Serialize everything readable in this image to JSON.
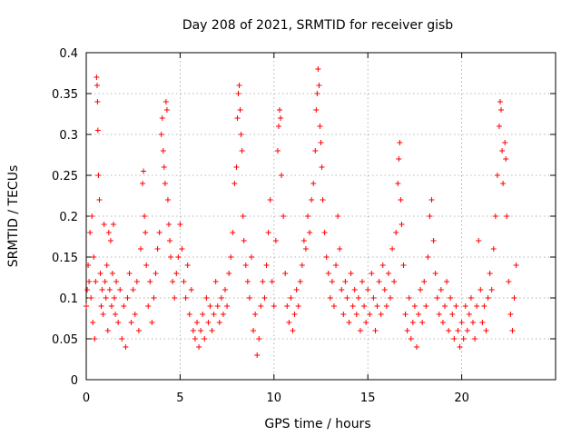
{
  "chart_data": {
    "type": "scatter",
    "title": "Day 208 of 2021, SRMTID for receiver gisb",
    "xlabel": "GPS time / hours",
    "ylabel": "SRMTID / TECUs",
    "xlim": [
      0,
      25
    ],
    "ylim": [
      0,
      0.4
    ],
    "xticks": [
      0,
      5,
      10,
      15,
      20
    ],
    "xtick_labels": [
      "0",
      "5",
      "10",
      "15",
      "20"
    ],
    "yticks": [
      0,
      0.05,
      0.1,
      0.15,
      0.2,
      0.25,
      0.3,
      0.35,
      0.4
    ],
    "ytick_labels": [
      "0",
      "0.05",
      "0.1",
      "0.15",
      "0.2",
      "0.25",
      "0.3",
      "0.35",
      "0.4"
    ],
    "grid": true,
    "marker": "plus",
    "color": "#ff0000",
    "series": [
      {
        "name": "SRMTID",
        "points": [
          [
            0.0,
            0.09
          ],
          [
            0.05,
            0.11
          ],
          [
            0.1,
            0.14
          ],
          [
            0.15,
            0.12
          ],
          [
            0.2,
            0.18
          ],
          [
            0.25,
            0.1
          ],
          [
            0.3,
            0.2
          ],
          [
            0.35,
            0.07
          ],
          [
            0.4,
            0.15
          ],
          [
            0.45,
            0.05
          ],
          [
            0.5,
            0.12
          ],
          [
            0.55,
            0.37
          ],
          [
            0.58,
            0.36
          ],
          [
            0.6,
            0.34
          ],
          [
            0.62,
            0.305
          ],
          [
            0.65,
            0.25
          ],
          [
            0.7,
            0.22
          ],
          [
            0.75,
            0.13
          ],
          [
            0.8,
            0.09
          ],
          [
            0.85,
            0.11
          ],
          [
            0.9,
            0.08
          ],
          [
            0.95,
            0.19
          ],
          [
            1.0,
            0.12
          ],
          [
            1.05,
            0.1
          ],
          [
            1.1,
            0.14
          ],
          [
            1.15,
            0.06
          ],
          [
            1.2,
            0.18
          ],
          [
            1.25,
            0.11
          ],
          [
            1.3,
            0.17
          ],
          [
            1.35,
            0.09
          ],
          [
            1.4,
            0.13
          ],
          [
            1.45,
            0.19
          ],
          [
            1.5,
            0.1
          ],
          [
            1.55,
            0.08
          ],
          [
            1.6,
            0.12
          ],
          [
            1.7,
            0.07
          ],
          [
            1.8,
            0.11
          ],
          [
            1.9,
            0.05
          ],
          [
            2.0,
            0.09
          ],
          [
            2.1,
            0.04
          ],
          [
            2.2,
            0.1
          ],
          [
            2.3,
            0.13
          ],
          [
            2.4,
            0.07
          ],
          [
            2.5,
            0.11
          ],
          [
            2.6,
            0.08
          ],
          [
            2.7,
            0.12
          ],
          [
            2.8,
            0.06
          ],
          [
            2.9,
            0.16
          ],
          [
            3.0,
            0.24
          ],
          [
            3.05,
            0.255
          ],
          [
            3.1,
            0.2
          ],
          [
            3.15,
            0.18
          ],
          [
            3.2,
            0.14
          ],
          [
            3.3,
            0.09
          ],
          [
            3.4,
            0.12
          ],
          [
            3.5,
            0.07
          ],
          [
            3.6,
            0.1
          ],
          [
            3.7,
            0.13
          ],
          [
            3.8,
            0.16
          ],
          [
            3.9,
            0.18
          ],
          [
            4.0,
            0.3
          ],
          [
            4.05,
            0.32
          ],
          [
            4.1,
            0.28
          ],
          [
            4.15,
            0.26
          ],
          [
            4.2,
            0.24
          ],
          [
            4.25,
            0.34
          ],
          [
            4.3,
            0.33
          ],
          [
            4.35,
            0.22
          ],
          [
            4.4,
            0.19
          ],
          [
            4.45,
            0.17
          ],
          [
            4.5,
            0.15
          ],
          [
            4.6,
            0.12
          ],
          [
            4.7,
            0.1
          ],
          [
            4.8,
            0.13
          ],
          [
            4.9,
            0.15
          ],
          [
            5.0,
            0.19
          ],
          [
            5.1,
            0.16
          ],
          [
            5.2,
            0.12
          ],
          [
            5.3,
            0.1
          ],
          [
            5.4,
            0.14
          ],
          [
            5.5,
            0.08
          ],
          [
            5.6,
            0.11
          ],
          [
            5.7,
            0.06
          ],
          [
            5.8,
            0.05
          ],
          [
            5.9,
            0.07
          ],
          [
            6.0,
            0.04
          ],
          [
            6.1,
            0.06
          ],
          [
            6.2,
            0.08
          ],
          [
            6.3,
            0.05
          ],
          [
            6.4,
            0.1
          ],
          [
            6.5,
            0.07
          ],
          [
            6.6,
            0.09
          ],
          [
            6.7,
            0.06
          ],
          [
            6.8,
            0.08
          ],
          [
            6.9,
            0.12
          ],
          [
            7.0,
            0.09
          ],
          [
            7.1,
            0.07
          ],
          [
            7.2,
            0.1
          ],
          [
            7.3,
            0.08
          ],
          [
            7.4,
            0.11
          ],
          [
            7.5,
            0.09
          ],
          [
            7.6,
            0.13
          ],
          [
            7.7,
            0.15
          ],
          [
            7.8,
            0.18
          ],
          [
            7.9,
            0.24
          ],
          [
            8.0,
            0.26
          ],
          [
            8.05,
            0.32
          ],
          [
            8.1,
            0.35
          ],
          [
            8.15,
            0.36
          ],
          [
            8.2,
            0.33
          ],
          [
            8.25,
            0.3
          ],
          [
            8.3,
            0.28
          ],
          [
            8.35,
            0.2
          ],
          [
            8.4,
            0.17
          ],
          [
            8.5,
            0.14
          ],
          [
            8.6,
            0.12
          ],
          [
            8.7,
            0.1
          ],
          [
            8.8,
            0.15
          ],
          [
            8.9,
            0.06
          ],
          [
            9.0,
            0.08
          ],
          [
            9.1,
            0.03
          ],
          [
            9.2,
            0.05
          ],
          [
            9.3,
            0.09
          ],
          [
            9.4,
            0.12
          ],
          [
            9.5,
            0.1
          ],
          [
            9.6,
            0.14
          ],
          [
            9.7,
            0.18
          ],
          [
            9.8,
            0.22
          ],
          [
            9.9,
            0.12
          ],
          [
            10.0,
            0.09
          ],
          [
            10.1,
            0.17
          ],
          [
            10.2,
            0.28
          ],
          [
            10.25,
            0.31
          ],
          [
            10.3,
            0.33
          ],
          [
            10.35,
            0.32
          ],
          [
            10.4,
            0.25
          ],
          [
            10.5,
            0.2
          ],
          [
            10.6,
            0.13
          ],
          [
            10.7,
            0.09
          ],
          [
            10.8,
            0.07
          ],
          [
            10.9,
            0.1
          ],
          [
            11.0,
            0.06
          ],
          [
            11.1,
            0.08
          ],
          [
            11.2,
            0.11
          ],
          [
            11.3,
            0.09
          ],
          [
            11.4,
            0.12
          ],
          [
            11.5,
            0.14
          ],
          [
            11.6,
            0.17
          ],
          [
            11.7,
            0.16
          ],
          [
            11.8,
            0.2
          ],
          [
            11.9,
            0.18
          ],
          [
            12.0,
            0.22
          ],
          [
            12.1,
            0.24
          ],
          [
            12.2,
            0.28
          ],
          [
            12.25,
            0.33
          ],
          [
            12.3,
            0.35
          ],
          [
            12.35,
            0.38
          ],
          [
            12.4,
            0.36
          ],
          [
            12.45,
            0.31
          ],
          [
            12.5,
            0.29
          ],
          [
            12.55,
            0.26
          ],
          [
            12.6,
            0.22
          ],
          [
            12.7,
            0.18
          ],
          [
            12.8,
            0.15
          ],
          [
            12.9,
            0.13
          ],
          [
            13.0,
            0.1
          ],
          [
            13.1,
            0.12
          ],
          [
            13.2,
            0.09
          ],
          [
            13.3,
            0.14
          ],
          [
            13.4,
            0.2
          ],
          [
            13.5,
            0.16
          ],
          [
            13.6,
            0.11
          ],
          [
            13.7,
            0.08
          ],
          [
            13.8,
            0.12
          ],
          [
            13.9,
            0.1
          ],
          [
            14.0,
            0.07
          ],
          [
            14.1,
            0.13
          ],
          [
            14.2,
            0.09
          ],
          [
            14.3,
            0.11
          ],
          [
            14.4,
            0.08
          ],
          [
            14.5,
            0.1
          ],
          [
            14.6,
            0.06
          ],
          [
            14.7,
            0.12
          ],
          [
            14.8,
            0.09
          ],
          [
            14.9,
            0.07
          ],
          [
            15.0,
            0.11
          ],
          [
            15.1,
            0.08
          ],
          [
            15.2,
            0.13
          ],
          [
            15.3,
            0.1
          ],
          [
            15.4,
            0.06
          ],
          [
            15.5,
            0.09
          ],
          [
            15.6,
            0.12
          ],
          [
            15.7,
            0.08
          ],
          [
            15.8,
            0.14
          ],
          [
            15.9,
            0.11
          ],
          [
            16.0,
            0.09
          ],
          [
            16.1,
            0.13
          ],
          [
            16.2,
            0.1
          ],
          [
            16.3,
            0.16
          ],
          [
            16.4,
            0.12
          ],
          [
            16.5,
            0.18
          ],
          [
            16.6,
            0.24
          ],
          [
            16.65,
            0.27
          ],
          [
            16.7,
            0.29
          ],
          [
            16.75,
            0.22
          ],
          [
            16.8,
            0.19
          ],
          [
            16.9,
            0.14
          ],
          [
            17.0,
            0.08
          ],
          [
            17.1,
            0.06
          ],
          [
            17.2,
            0.1
          ],
          [
            17.3,
            0.05
          ],
          [
            17.4,
            0.07
          ],
          [
            17.5,
            0.09
          ],
          [
            17.6,
            0.04
          ],
          [
            17.7,
            0.08
          ],
          [
            17.8,
            0.11
          ],
          [
            17.9,
            0.07
          ],
          [
            18.0,
            0.12
          ],
          [
            18.1,
            0.09
          ],
          [
            18.2,
            0.15
          ],
          [
            18.3,
            0.2
          ],
          [
            18.4,
            0.22
          ],
          [
            18.5,
            0.17
          ],
          [
            18.6,
            0.13
          ],
          [
            18.7,
            0.1
          ],
          [
            18.8,
            0.08
          ],
          [
            18.9,
            0.11
          ],
          [
            19.0,
            0.07
          ],
          [
            19.1,
            0.09
          ],
          [
            19.2,
            0.12
          ],
          [
            19.3,
            0.06
          ],
          [
            19.4,
            0.1
          ],
          [
            19.5,
            0.08
          ],
          [
            19.6,
            0.05
          ],
          [
            19.7,
            0.09
          ],
          [
            19.8,
            0.06
          ],
          [
            19.9,
            0.04
          ],
          [
            20.0,
            0.07
          ],
          [
            20.1,
            0.05
          ],
          [
            20.2,
            0.09
          ],
          [
            20.3,
            0.06
          ],
          [
            20.4,
            0.08
          ],
          [
            20.5,
            0.1
          ],
          [
            20.6,
            0.07
          ],
          [
            20.7,
            0.05
          ],
          [
            20.8,
            0.09
          ],
          [
            20.9,
            0.17
          ],
          [
            21.0,
            0.11
          ],
          [
            21.1,
            0.07
          ],
          [
            21.2,
            0.09
          ],
          [
            21.3,
            0.06
          ],
          [
            21.4,
            0.1
          ],
          [
            21.5,
            0.13
          ],
          [
            21.6,
            0.11
          ],
          [
            21.7,
            0.16
          ],
          [
            21.8,
            0.2
          ],
          [
            21.9,
            0.25
          ],
          [
            22.0,
            0.31
          ],
          [
            22.05,
            0.34
          ],
          [
            22.1,
            0.33
          ],
          [
            22.15,
            0.28
          ],
          [
            22.2,
            0.24
          ],
          [
            22.3,
            0.29
          ],
          [
            22.35,
            0.27
          ],
          [
            22.4,
            0.2
          ],
          [
            22.5,
            0.12
          ],
          [
            22.6,
            0.08
          ],
          [
            22.7,
            0.06
          ],
          [
            22.8,
            0.1
          ],
          [
            22.9,
            0.14
          ]
        ]
      }
    ]
  }
}
